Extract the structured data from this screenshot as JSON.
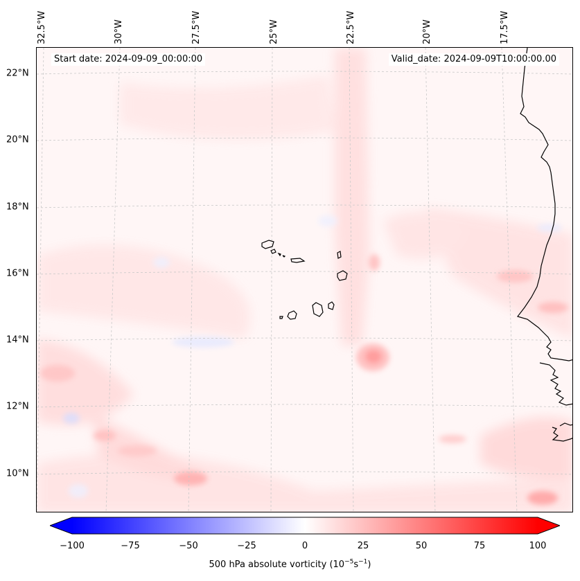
{
  "map": {
    "longitude_labels": [
      "32.5°W",
      "30°W",
      "27.5°W",
      "25°W",
      "22.5°W",
      "20°W",
      "17.5°W"
    ],
    "latitude_labels": [
      "22°N",
      "20°N",
      "18°N",
      "16°N",
      "14°N",
      "12°N",
      "10°N"
    ],
    "start_date_text": "Start date: 2024-09-09_00:00:00",
    "valid_date_text": "Valid_date: 2024-09-09T10:00:00.00",
    "region": "Cabo Verde islands and West African coast",
    "gridlines": true
  },
  "colorbar": {
    "ticks": [
      "−100",
      "−75",
      "−50",
      "−25",
      "0",
      "25",
      "50",
      "75",
      "100"
    ],
    "label_prefix": "500 hPa absolute vorticity (10",
    "label_exp1": "−5",
    "label_mid": "s",
    "label_exp2": "−1",
    "label_suffix": ")",
    "colormap": "bwr",
    "low_color": "#0000ff",
    "high_color": "#ff0000"
  }
}
